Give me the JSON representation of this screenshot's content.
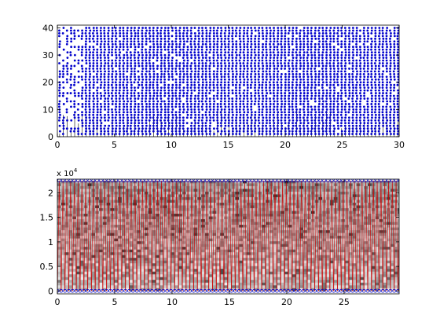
{
  "chart_data": [
    {
      "type": "scatter",
      "title": "",
      "xlabel": "",
      "ylabel": "",
      "xlim": [
        0,
        30
      ],
      "ylim": [
        0,
        41
      ],
      "x_ticks": [
        0,
        5,
        10,
        15,
        20,
        25,
        30
      ],
      "y_ticks": [
        0,
        10,
        20,
        30,
        40
      ],
      "grid": false,
      "legend": "none",
      "marker_color": "#0000cc",
      "stem_color": "#000000",
      "description_of_data": "stacked dot columns at roughly regular x intervals, y from 1 to 40",
      "series": [
        {
          "x_step": 0.33,
          "x_start": 0.2,
          "y_range": [
            1,
            40
          ]
        }
      ]
    },
    {
      "type": "heatmap",
      "title": "",
      "xlabel": "",
      "ylabel": "",
      "xlim": [
        0,
        29.8
      ],
      "ylim": [
        -600,
        22800
      ],
      "x_ticks": [
        0,
        5,
        10,
        15,
        20,
        25
      ],
      "y_ticks": [
        0,
        0.5,
        1,
        1.5,
        2
      ],
      "y_tick_labels": [
        "0",
        "0.5",
        "1",
        "1.5",
        "2"
      ],
      "y_exponent": "x 10",
      "y_exponent_power": "4",
      "grid": false,
      "legend": "none",
      "line_color": "#cc0000",
      "marker_color": "#0000cc",
      "top_value": 22500,
      "bottom_value": 0,
      "cycle_period": 0.33
    }
  ]
}
